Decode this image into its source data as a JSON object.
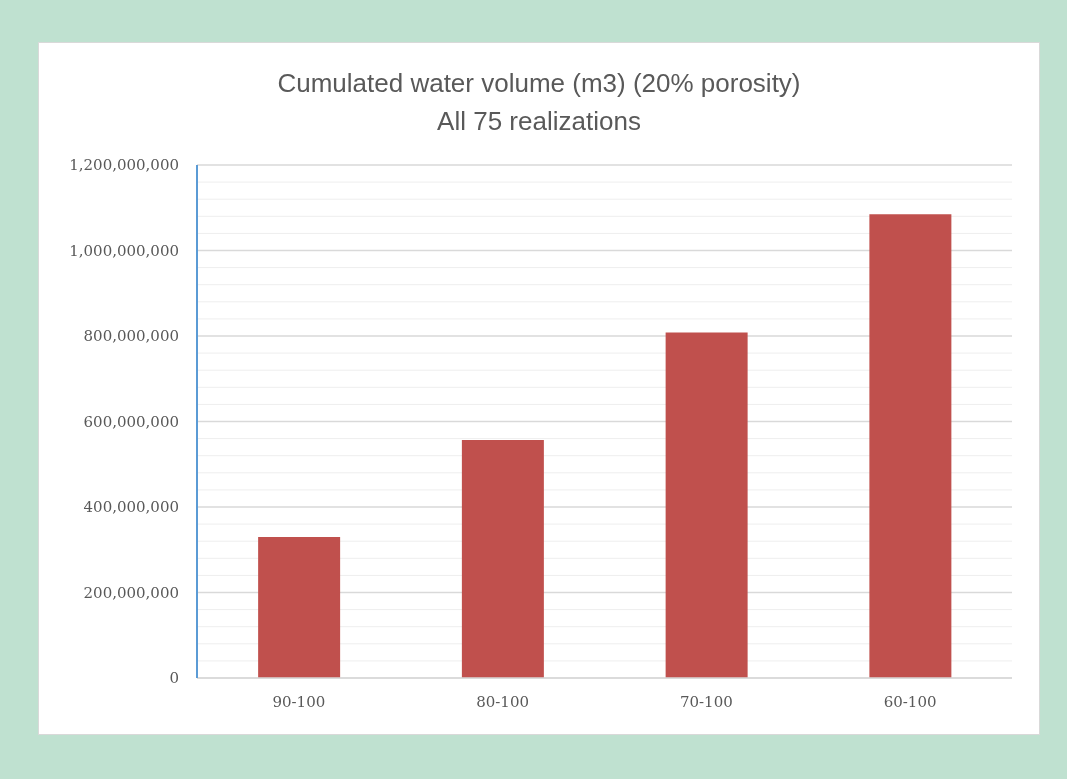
{
  "chart_data": {
    "type": "bar",
    "title": "Cumulated water volume (m3) (20% porosity)",
    "subtitle": "All 75 realizations",
    "categories": [
      "90-100",
      "80-100",
      "70-100",
      "60-100"
    ],
    "values": [
      330000000,
      557000000,
      808000000,
      1085000000
    ],
    "color": "#c0504d",
    "ylim": [
      0,
      1200000000
    ],
    "yticks": [
      0,
      {
        "value": 40000000,
        "label": null
      },
      {
        "value": 80000000,
        "label": null
      },
      {
        "value": 120000000,
        "label": null
      },
      {
        "value": 160000000,
        "label": null
      },
      {
        "value": 200000000,
        "label": "200,000,000"
      },
      {
        "value": 240000000,
        "label": null
      },
      {
        "value": 280000000,
        "label": null
      },
      {
        "value": 320000000,
        "label": null
      },
      {
        "value": 360000000,
        "label": null
      },
      {
        "value": 400000000,
        "label": "400,000,000"
      },
      {
        "value": 440000000,
        "label": null
      },
      {
        "value": 480000000,
        "label": null
      },
      {
        "value": 520000000,
        "label": null
      },
      {
        "value": 560000000,
        "label": null
      },
      {
        "value": 600000000,
        "label": "600,000,000"
      },
      {
        "value": 640000000,
        "label": null
      },
      {
        "value": 680000000,
        "label": null
      },
      {
        "value": 720000000,
        "label": null
      },
      {
        "value": 760000000,
        "label": null
      },
      {
        "value": 800000000,
        "label": "800,000,000"
      },
      {
        "value": 840000000,
        "label": null
      },
      {
        "value": 880000000,
        "label": null
      },
      {
        "value": 920000000,
        "label": null
      },
      {
        "value": 960000000,
        "label": null
      },
      {
        "value": 1000000000,
        "label": "1,000,000,000"
      },
      {
        "value": 1040000000,
        "label": null
      },
      {
        "value": 1080000000,
        "label": null
      },
      {
        "value": 1120000000,
        "label": null
      },
      {
        "value": 1160000000,
        "label": null
      },
      {
        "value": 1200000000,
        "label": "1,200,000,000"
      }
    ],
    "grid": "y"
  }
}
